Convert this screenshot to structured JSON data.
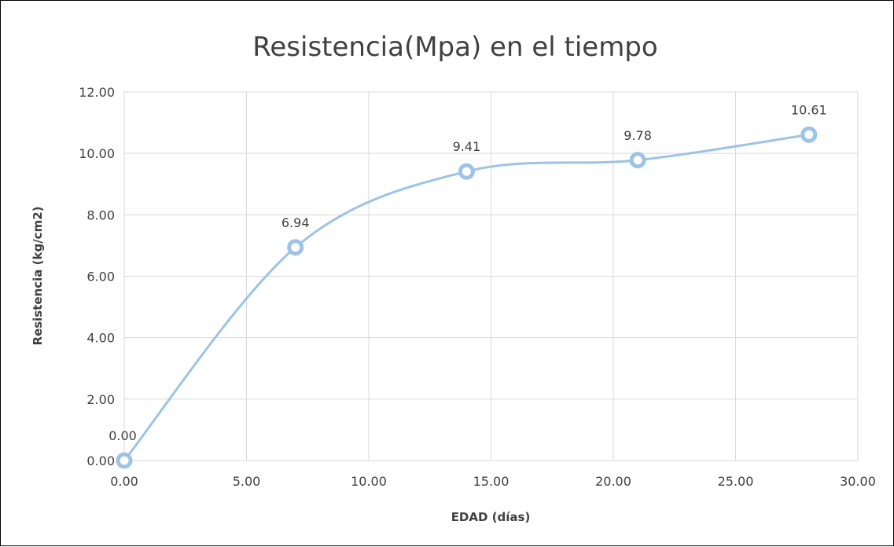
{
  "chart_data": {
    "type": "scatter",
    "title": "Resistencia(Mpa) en el tiempo",
    "xlabel": "EDAD (días)",
    "ylabel": "Resistencia (kg/cm2)",
    "xlim": [
      0,
      30
    ],
    "ylim": [
      0,
      12
    ],
    "x_ticks": [
      "0.00",
      "5.00",
      "10.00",
      "15.00",
      "20.00",
      "25.00",
      "30.00"
    ],
    "y_ticks": [
      "0.00",
      "2.00",
      "4.00",
      "6.00",
      "8.00",
      "10.00",
      "12.00"
    ],
    "grid": true,
    "smooth_line": true,
    "series": [
      {
        "x": [
          0,
          7,
          14,
          21,
          28
        ],
        "y": [
          0.0,
          6.94,
          9.41,
          9.78,
          10.61
        ],
        "labels": [
          "0.00",
          "6.94",
          "9.41",
          "9.78",
          "10.61"
        ],
        "color": "#9DC3E6"
      }
    ]
  }
}
